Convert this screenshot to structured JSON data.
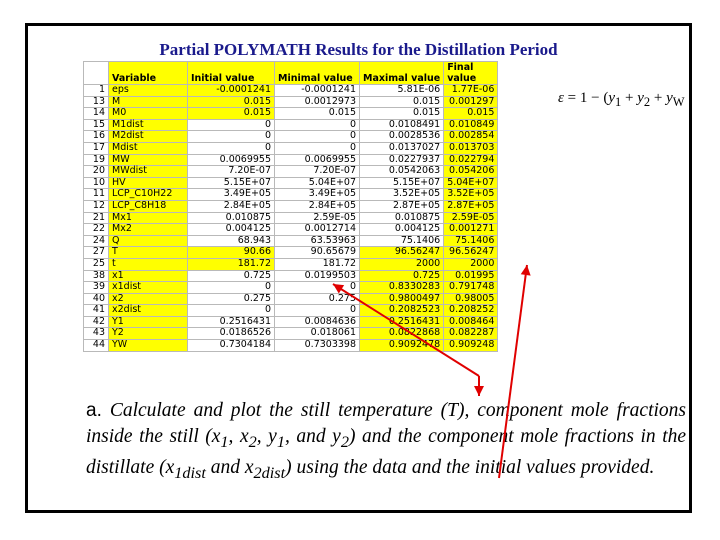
{
  "title": "Partial POLYMATH Results for the Distillation Period",
  "table": {
    "headers": {
      "variable": "Variable",
      "initial": "Initial value",
      "minimal": "Minimal value",
      "maximal": "Maximal value",
      "final_1": "Final",
      "final_2": "value"
    },
    "rows": [
      {
        "n": "1",
        "var": "eps",
        "init": "-0.0001241",
        "min": "-0.0001241",
        "max": "5.81E-06",
        "fin": "1.77E-06"
      },
      {
        "n": "13",
        "var": "M",
        "init": "0.015",
        "min": "0.0012973",
        "max": "0.015",
        "fin": "0.001297"
      },
      {
        "n": "14",
        "var": "M0",
        "init": "0.015",
        "min": "0.015",
        "max": "0.015",
        "fin": "0.015"
      },
      {
        "n": "15",
        "var": "M1dist",
        "init": "0",
        "min": "0",
        "max": "0.0108491",
        "fin": "0.010849"
      },
      {
        "n": "16",
        "var": "M2dist",
        "init": "0",
        "min": "0",
        "max": "0.0028536",
        "fin": "0.002854"
      },
      {
        "n": "17",
        "var": "Mdist",
        "init": "0",
        "min": "0",
        "max": "0.0137027",
        "fin": "0.013703"
      },
      {
        "n": "19",
        "var": "MW",
        "init": "0.0069955",
        "min": "0.0069955",
        "max": "0.0227937",
        "fin": "0.022794"
      },
      {
        "n": "20",
        "var": "MWdist",
        "init": "7.20E-07",
        "min": "7.20E-07",
        "max": "0.0542063",
        "fin": "0.054206"
      },
      {
        "n": "10",
        "var": "HV",
        "init": "5.15E+07",
        "min": "5.04E+07",
        "max": "5.15E+07",
        "fin": "5.04E+07"
      },
      {
        "n": "11",
        "var": "LCP_C10H22",
        "init": "3.49E+05",
        "min": "3.49E+05",
        "max": "3.52E+05",
        "fin": "3.52E+05"
      },
      {
        "n": "12",
        "var": "LCP_C8H18",
        "init": "2.84E+05",
        "min": "2.84E+05",
        "max": "2.87E+05",
        "fin": "2.87E+05"
      },
      {
        "n": "21",
        "var": "Mx1",
        "init": "0.010875",
        "min": "2.59E-05",
        "max": "0.010875",
        "fin": "2.59E-05"
      },
      {
        "n": "22",
        "var": "Mx2",
        "init": "0.004125",
        "min": "0.0012714",
        "max": "0.004125",
        "fin": "0.001271"
      },
      {
        "n": "24",
        "var": "Q",
        "init": "68.943",
        "min": "63.53963",
        "max": "75.1406",
        "fin": "75.1406"
      },
      {
        "n": "27",
        "var": "T",
        "init": "90.66",
        "min": "90.65679",
        "max": "96.56247",
        "fin": "96.56247"
      },
      {
        "n": "25",
        "var": "t",
        "init": "181.72",
        "min": "181.72",
        "max": "2000",
        "fin": "2000"
      },
      {
        "n": "38",
        "var": "x1",
        "init": "0.725",
        "min": "0.0199503",
        "max": "0.725",
        "fin": "0.01995"
      },
      {
        "n": "39",
        "var": "x1dist",
        "init": "0",
        "min": "0",
        "max": "0.8330283",
        "fin": "0.791748"
      },
      {
        "n": "40",
        "var": "x2",
        "init": "0.275",
        "min": "0.275",
        "max": "0.9800497",
        "fin": "0.98005"
      },
      {
        "n": "41",
        "var": "x2dist",
        "init": "0",
        "min": "0",
        "max": "0.2082523",
        "fin": "0.208252"
      },
      {
        "n": "42",
        "var": "Y1",
        "init": "0.2516431",
        "min": "0.0084636",
        "max": "0.2516431",
        "fin": "0.008464"
      },
      {
        "n": "43",
        "var": "Y2",
        "init": "0.0186526",
        "min": "0.018061",
        "max": "0.0822868",
        "fin": "0.082287"
      },
      {
        "n": "44",
        "var": "YW",
        "init": "0.7304184",
        "min": "0.7303398",
        "max": "0.9092478",
        "fin": "0.909248"
      }
    ]
  },
  "highlight_color": "#ffff00",
  "arrow_color": "#e00000",
  "equation": {
    "eps": "ε",
    "rest": " = 1 − (",
    "y1": "y",
    "s1": "1",
    "plus1": " + ",
    "y2": "y",
    "s2": "2",
    "plus2": " + ",
    "yw": "y",
    "sw": "W"
  },
  "paragraph": {
    "lead": "a.",
    "p1": " Calculate and plot the still temperature (T), component mole fractions inside the still (x",
    "s1": "1",
    "p2": ", x",
    "s2": "2",
    "p3": ", y",
    "s3": "1",
    "p4": ", and y",
    "s4": "2",
    "p5": ") and the component mole fractions in the distillate (x",
    "s5": "1dist",
    "p6": " and x",
    "s6": "2dist",
    "p7": ") using the data and the initial values provided."
  }
}
